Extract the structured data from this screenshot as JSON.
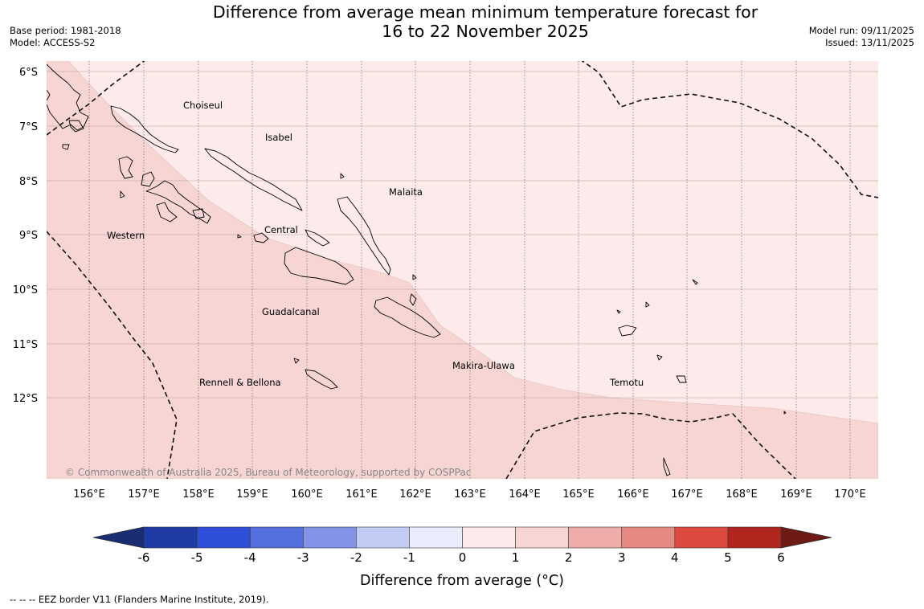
{
  "title": {
    "line1": "Difference from average mean minimum temperature forecast for",
    "line2": "16 to 22 November 2025"
  },
  "meta_left": {
    "base_period": "Base period: 1981-2018",
    "model": "Model: ACCESS-S2"
  },
  "meta_right": {
    "model_run": "Model run: 09/11/2025",
    "issued": "Issued: 13/11/2025"
  },
  "map": {
    "lat_labels": [
      "6°S",
      "7°S",
      "8°S",
      "9°S",
      "10°S",
      "11°S",
      "12°S"
    ],
    "lon_labels": [
      "156°E",
      "157°E",
      "158°E",
      "159°E",
      "160°E",
      "161°E",
      "162°E",
      "163°E",
      "164°E",
      "165°E",
      "166°E",
      "167°E",
      "168°E",
      "169°E",
      "170°E"
    ],
    "province_labels": [
      "Choiseul",
      "Isabel",
      "Malaita",
      "Western",
      "Central",
      "Guadalcanal",
      "Makira-Ulawa",
      "Temotu",
      "Rennell & Bellona"
    ],
    "copyright": "© Commonwealth of Australia 2025, Bureau of Meteorology, supported by COSPPac",
    "fill_colors": {
      "zero_to_one": "#fcebea",
      "one_to_two": "#f6d5d3"
    }
  },
  "colorbar": {
    "ticks": [
      "-6",
      "-5",
      "-4",
      "-3",
      "-2",
      "-1",
      "0",
      "1",
      "2",
      "3",
      "4",
      "5",
      "6"
    ],
    "colors": [
      "#1f3ca6",
      "#2f4fd9",
      "#5470df",
      "#8394e8",
      "#c2cbf3",
      "#e8ecfb",
      "#fcebea",
      "#f6d5d3",
      "#eeacaa",
      "#e58a82",
      "#dc4a40",
      "#b0261f"
    ],
    "under_color": "#1a2c73",
    "over_color": "#6e1a15",
    "label": "Difference from average (°C)"
  },
  "footer": "--  --  -- EEZ border V11 (Flanders Marine Institute, 2019)."
}
